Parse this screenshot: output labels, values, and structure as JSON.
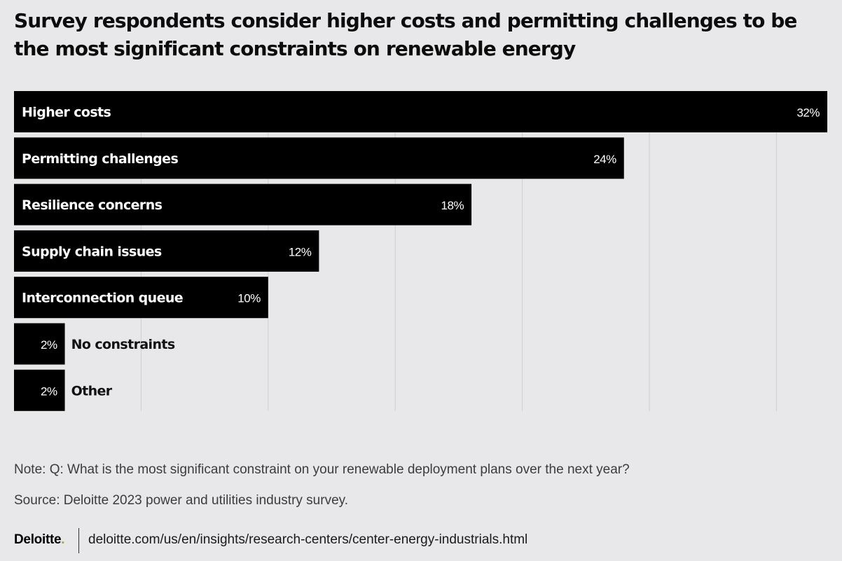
{
  "chart_data": {
    "type": "bar",
    "orientation": "horizontal",
    "title": "Survey respondents consider higher costs and permitting challenges to be the most significant constraints on renewable energy",
    "categories": [
      "Higher costs",
      "Permitting challenges",
      "Resilience concerns",
      "Supply chain issues",
      "Interconnection queue",
      "No constraints",
      "Other"
    ],
    "values": [
      32,
      24,
      18,
      12,
      10,
      2,
      2
    ],
    "value_labels": [
      "32%",
      "24%",
      "18%",
      "12%",
      "10%",
      "2%",
      "2%"
    ],
    "xlim": [
      0,
      32
    ],
    "grid": true,
    "bar_color": "#000000",
    "grid_color": "#cfcfd2"
  },
  "footer": {
    "note": "Note: Q: What is the most significant constraint on your renewable deployment plans over the next year?",
    "source": "Source: Deloitte 2023 power and utilities industry survey.",
    "logo_text": "Deloitte",
    "logo_dot": ".",
    "url": "deloitte.com/us/en/insights/research-centers/center-energy-industrials.html"
  }
}
